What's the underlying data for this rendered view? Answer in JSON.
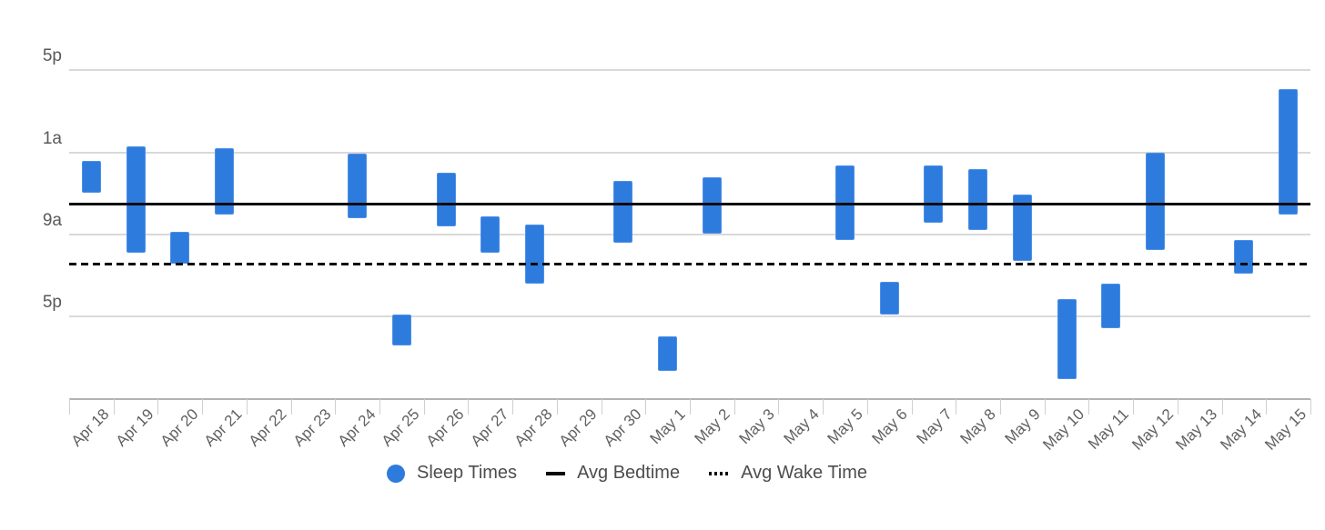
{
  "chart_data": {
    "type": "bar",
    "subtype": "floating-range-bars (sleep periods, time of day on y-axis flowing downward)",
    "title": "",
    "xlabel": "",
    "ylabel": "",
    "categories": [
      "Apr 18",
      "Apr 19",
      "Apr 20",
      "Apr 21",
      "Apr 22",
      "Apr 23",
      "Apr 24",
      "Apr 25",
      "Apr 26",
      "Apr 27",
      "Apr 28",
      "Apr 29",
      "Apr 30",
      "May 1",
      "May 2",
      "May 3",
      "May 4",
      "May 5",
      "May 6",
      "May 7",
      "May 8",
      "May 9",
      "May 10",
      "May 11",
      "May 12",
      "May 13",
      "May 14",
      "May 15"
    ],
    "y_axis": {
      "description": "hours on a continuous clock scale: 17 = 5pm, 25 = 1am (+1 day), 33 = 9am, 41 = 5pm, axis bottom 49 = 1am (+2 days); time increases downward",
      "min": 17,
      "max": 49,
      "tick_step": 8,
      "tick_values": [
        17,
        25,
        33,
        41
      ],
      "tick_labels": [
        "5p",
        "1a",
        "9a",
        "5p"
      ],
      "grid": true
    },
    "series": [
      {
        "name": "Sleep Times",
        "ranges_hours": [
          [
            25.8,
            28.9
          ],
          [
            24.4,
            34.8
          ],
          [
            32.7,
            35.8
          ],
          [
            24.6,
            31.1
          ],
          null,
          null,
          [
            25.1,
            31.4
          ],
          [
            40.8,
            43.8
          ],
          [
            27.0,
            32.2
          ],
          [
            31.2,
            34.8
          ],
          [
            32.0,
            37.8
          ],
          null,
          [
            27.8,
            33.8
          ],
          [
            42.9,
            46.3
          ],
          [
            27.4,
            32.9
          ],
          null,
          null,
          [
            26.3,
            33.5
          ],
          [
            37.6,
            40.8
          ],
          [
            26.3,
            31.9
          ],
          [
            26.6,
            32.6
          ],
          [
            29.1,
            35.6
          ],
          [
            39.3,
            47.1
          ],
          [
            37.8,
            42.1
          ],
          [
            25.0,
            34.5
          ],
          null,
          [
            33.5,
            36.8
          ],
          [
            18.8,
            31.1
          ]
        ]
      }
    ],
    "reference_lines": [
      {
        "name": "Avg Bedtime",
        "value_hours": 30.0,
        "approx_time": "6:00a",
        "style": "solid"
      },
      {
        "name": "Avg Wake Time",
        "value_hours": 35.9,
        "approx_time": "11:55a",
        "style": "dashed"
      }
    ],
    "legend": {
      "position": "bottom-center",
      "items": [
        {
          "label": "Sleep Times",
          "marker": "circle"
        },
        {
          "label": "Avg Bedtime",
          "marker": "solid-line"
        },
        {
          "label": "Avg Wake Time",
          "marker": "dotted-line"
        }
      ]
    }
  },
  "colors": {
    "bar_fill": "#2E7BDE",
    "bar_border": "#4D8FE8",
    "reference_line": "#0a0a0a",
    "gridline": "#d9d9d9",
    "axis_line": "#b3b3b3",
    "tick_mark": "#cfcfcf",
    "y_label_text": "#58595b",
    "x_label_text": "#616161",
    "legend_text": "#4d4d4d",
    "background": "#ffffff"
  }
}
